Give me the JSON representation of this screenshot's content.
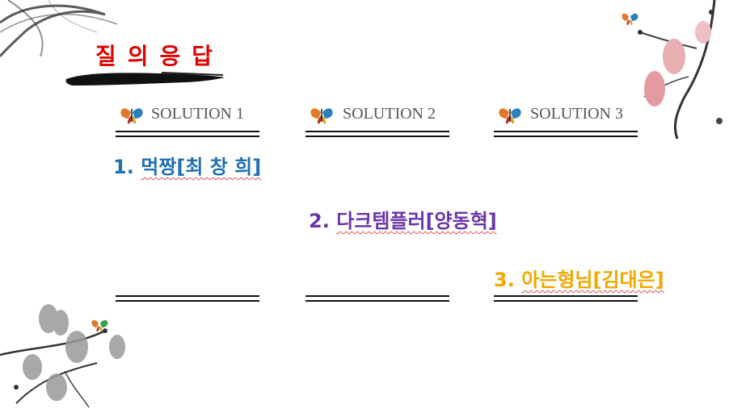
{
  "slide": {
    "title": "질의응답",
    "colors": {
      "title": "#e00000",
      "solution1": "#1f6fb5",
      "solution2": "#6a35a8",
      "solution3": "#f0a800"
    }
  },
  "solutions": [
    {
      "header": "SOLUTION 1",
      "number": "1.",
      "text": "먹짱[최 창 희]"
    },
    {
      "header": "SOLUTION 2",
      "number": "2.",
      "text": "다크템플러[양동혁]"
    },
    {
      "header": "SOLUTION 3",
      "number": "3.",
      "text": "아는형님[김대은]"
    }
  ],
  "icons": [
    "butterfly-icon",
    "ink-brush-stroke",
    "plum-blossom-branch",
    "magnolia-branch"
  ]
}
